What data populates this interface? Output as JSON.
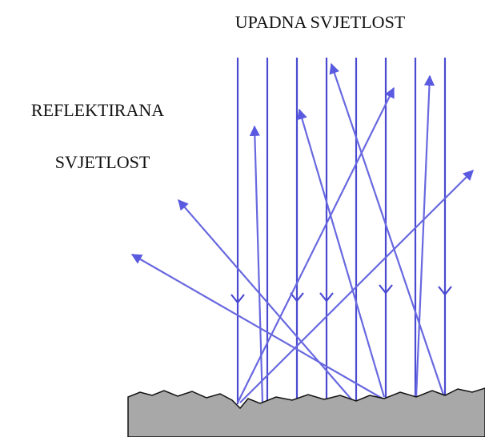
{
  "labels": {
    "incident": "UPADNA SVJETLOST",
    "reflected_line1": "REFLEKTIRANA",
    "reflected_line2": "SVJETLOST"
  }
}
